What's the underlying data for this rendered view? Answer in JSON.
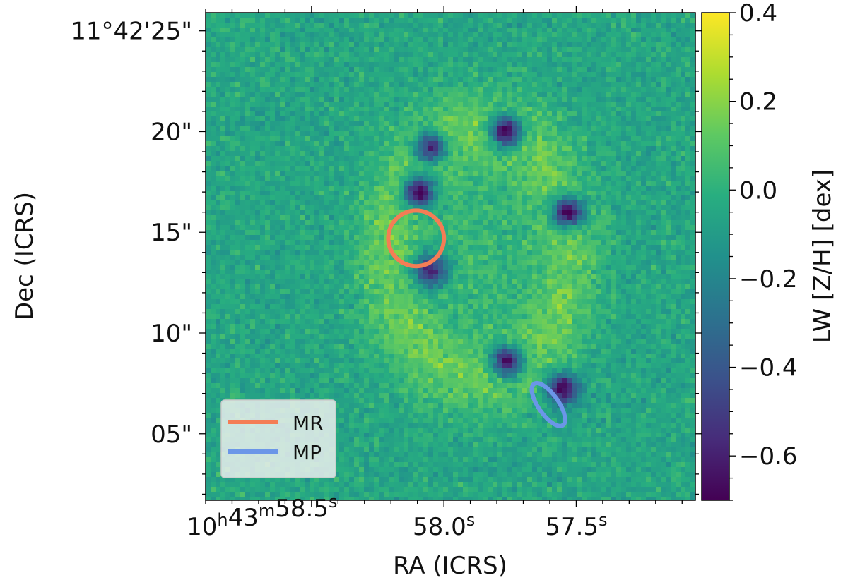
{
  "chart_data": {
    "type": "heatmap",
    "xlabel": "RA (ICRS)",
    "ylabel": "Dec (ICRS)",
    "x_ticks": [
      {
        "value": 58.5,
        "label": "10h43m58.5s"
      },
      {
        "value": 58.0,
        "label": "58.0s"
      },
      {
        "value": 57.5,
        "label": "57.5s"
      }
    ],
    "y_ticks": [
      {
        "value": 25,
        "label": "11°42'25\""
      },
      {
        "value": 20,
        "label": "20\""
      },
      {
        "value": 15,
        "label": "15\""
      },
      {
        "value": 10,
        "label": "10\""
      },
      {
        "value": 5,
        "label": "05\""
      }
    ],
    "ra_range_seconds": [
      58.9,
      57.05
    ],
    "dec_range_arcsec": [
      1.7,
      25.9
    ],
    "colorbar": {
      "label": "LW [Z/H] [dex]",
      "range": [
        -0.7,
        0.4
      ],
      "ticks": [
        0.4,
        0.2,
        0.0,
        -0.2,
        -0.4,
        -0.6
      ],
      "tick_labels": [
        "0.4",
        "0.2",
        "0.0",
        "−0.2",
        "−0.4",
        "−0.6"
      ],
      "colormap": "viridis"
    },
    "background_value": -0.05,
    "ring_value": 0.13,
    "blobs": [
      {
        "ra": 58.094,
        "dec": 17.0,
        "value": -0.7
      },
      {
        "ra": 58.05,
        "dec": 19.2,
        "value": -0.55
      },
      {
        "ra": 57.765,
        "dec": 20.0,
        "value": -0.7
      },
      {
        "ra": 57.53,
        "dec": 16.0,
        "value": -0.68
      },
      {
        "ra": 58.05,
        "dec": 13.1,
        "value": -0.65
      },
      {
        "ra": 57.76,
        "dec": 8.6,
        "value": -0.65
      },
      {
        "ra": 57.55,
        "dec": 7.2,
        "value": -0.7
      }
    ],
    "regions": [
      {
        "name": "MR",
        "shape": "circle",
        "ra": 58.105,
        "dec": 14.7,
        "radius_arcsec": 1.38,
        "color": "#f47d55"
      },
      {
        "name": "MP",
        "shape": "ellipse",
        "ra": 57.605,
        "dec": 6.45,
        "semi_major_arcsec": 1.25,
        "semi_minor_arcsec": 0.5,
        "color": "#6b96e8"
      }
    ],
    "legend": {
      "position": "lower-left",
      "entries": [
        "MR",
        "MP"
      ]
    }
  }
}
